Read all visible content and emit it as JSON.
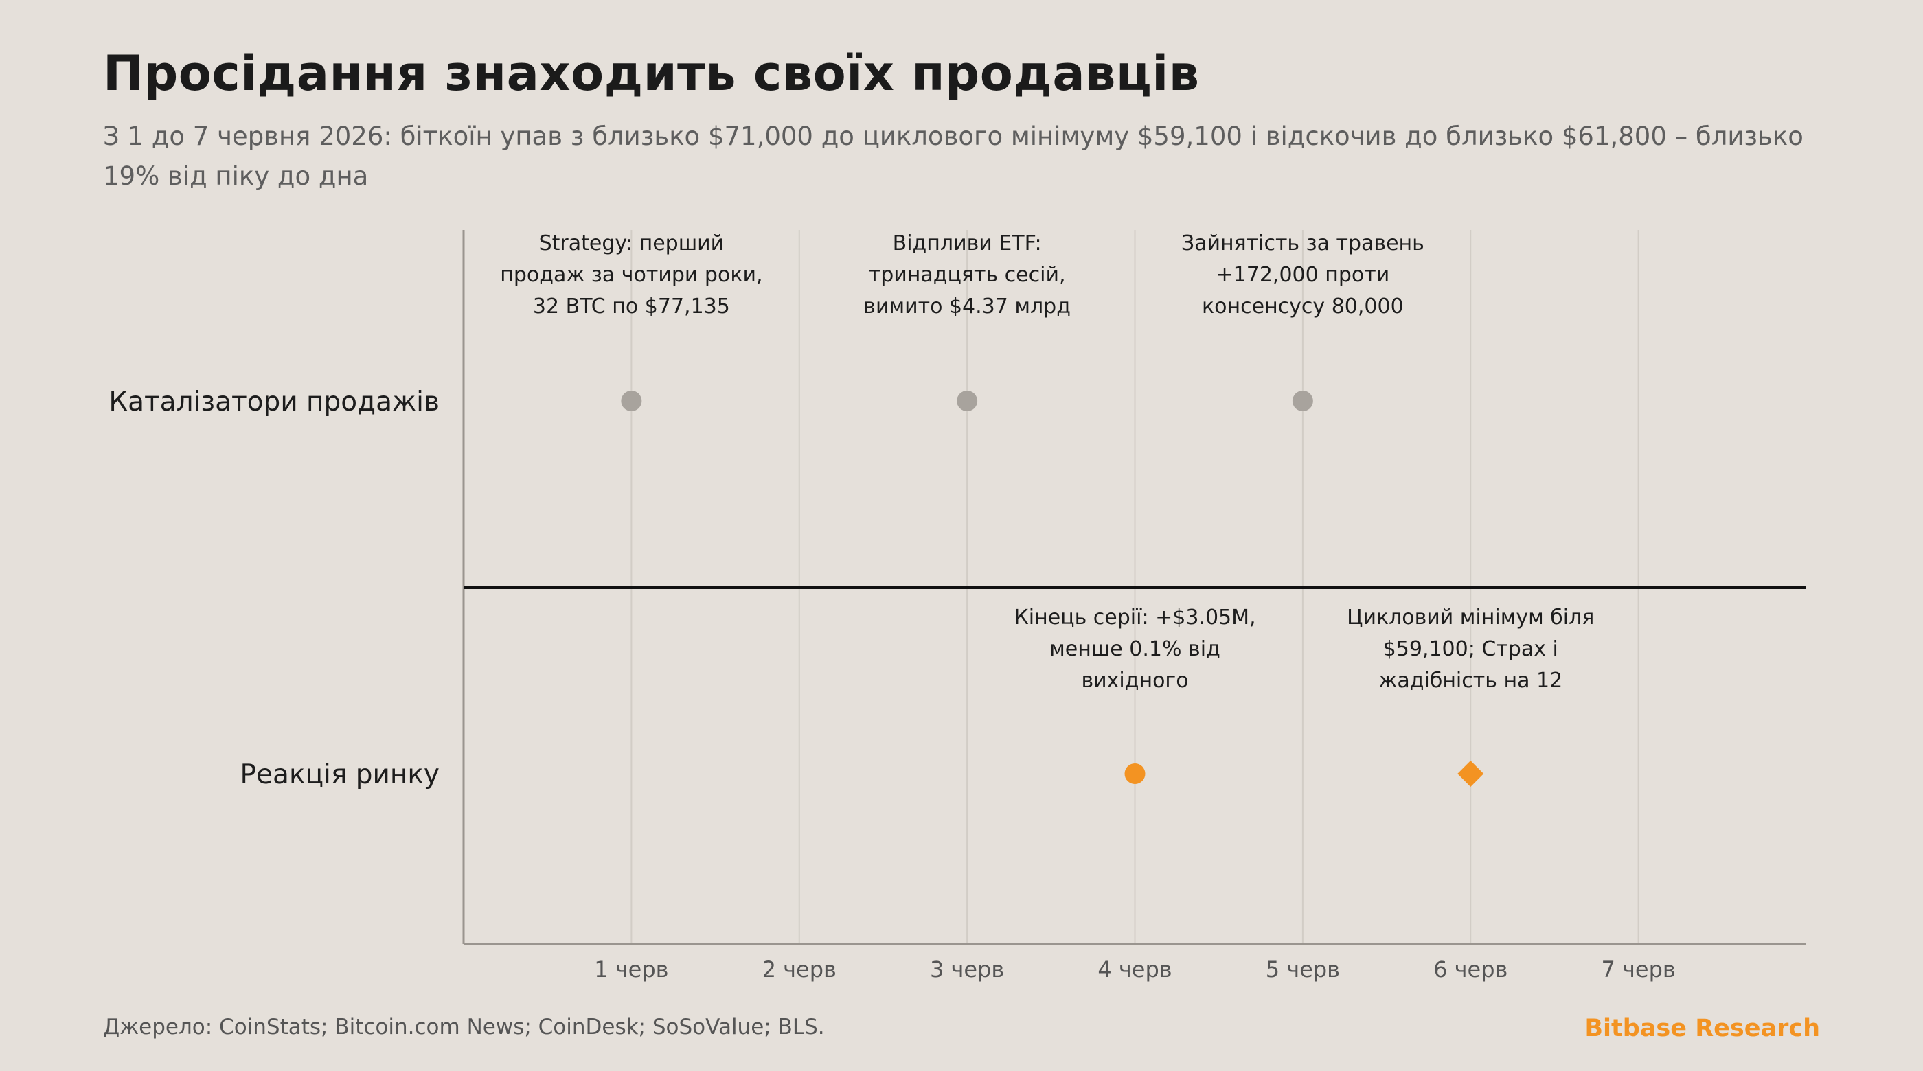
{
  "header": {
    "title": "Просідання знаходить своїх продавців",
    "subtitle": "З 1 до 7 червня 2026: біткоїн упав з близько $71,000 до циклового мінімуму $59,100 і відскочив до близько $61,800 – близько 19% від піку до дна"
  },
  "footer": {
    "source": "Джерело: CoinStats; Bitcoin.com News; CoinDesk; SoSoValue; BLS.",
    "brand": "Bitbase Research"
  },
  "colors": {
    "background": "#e5e0da",
    "catalyst_marker": "#a8a39d",
    "reaction_marker": "#f39322",
    "divider": "#111111",
    "grid": "#d2cdc6",
    "axis": "#9a958f"
  },
  "chart_data": {
    "type": "scatter",
    "title": "Просідання знаходить своїх продавців",
    "categories": [
      "1 черв",
      "2 черв",
      "3 черв",
      "4 черв",
      "5 черв",
      "6 черв",
      "7 черв"
    ],
    "rows": [
      "Каталізатори продажів",
      "Реакція ринку"
    ],
    "xlim": [
      0,
      8
    ],
    "grid": true,
    "series": [
      {
        "row": "Каталізатори продажів",
        "marker": "circle",
        "color": "#a8a39d",
        "points": [
          {
            "x": 1,
            "label": [
              "Strategy: перший",
              "продаж за чотири роки,",
              "32 BTC по $77,135"
            ]
          },
          {
            "x": 3,
            "label": [
              "Відпливи ETF:",
              "тринадцять сесій,",
              "вимито $4.37 млрд"
            ]
          },
          {
            "x": 5,
            "label": [
              "Зайнятість за травень",
              "+172,000 проти",
              "консенсусу 80,000"
            ]
          }
        ]
      },
      {
        "row": "Реакція ринку",
        "marker": "mixed",
        "color": "#f39322",
        "points": [
          {
            "x": 4,
            "marker": "circle",
            "label": [
              "Кінець серії: +$3.05M,",
              "менше 0.1% від",
              "вихідного"
            ]
          },
          {
            "x": 6,
            "marker": "diamond",
            "label": [
              "Цикловий мінімум біля",
              "$59,100; Страх і",
              "жадібність на 12"
            ]
          }
        ]
      }
    ]
  }
}
